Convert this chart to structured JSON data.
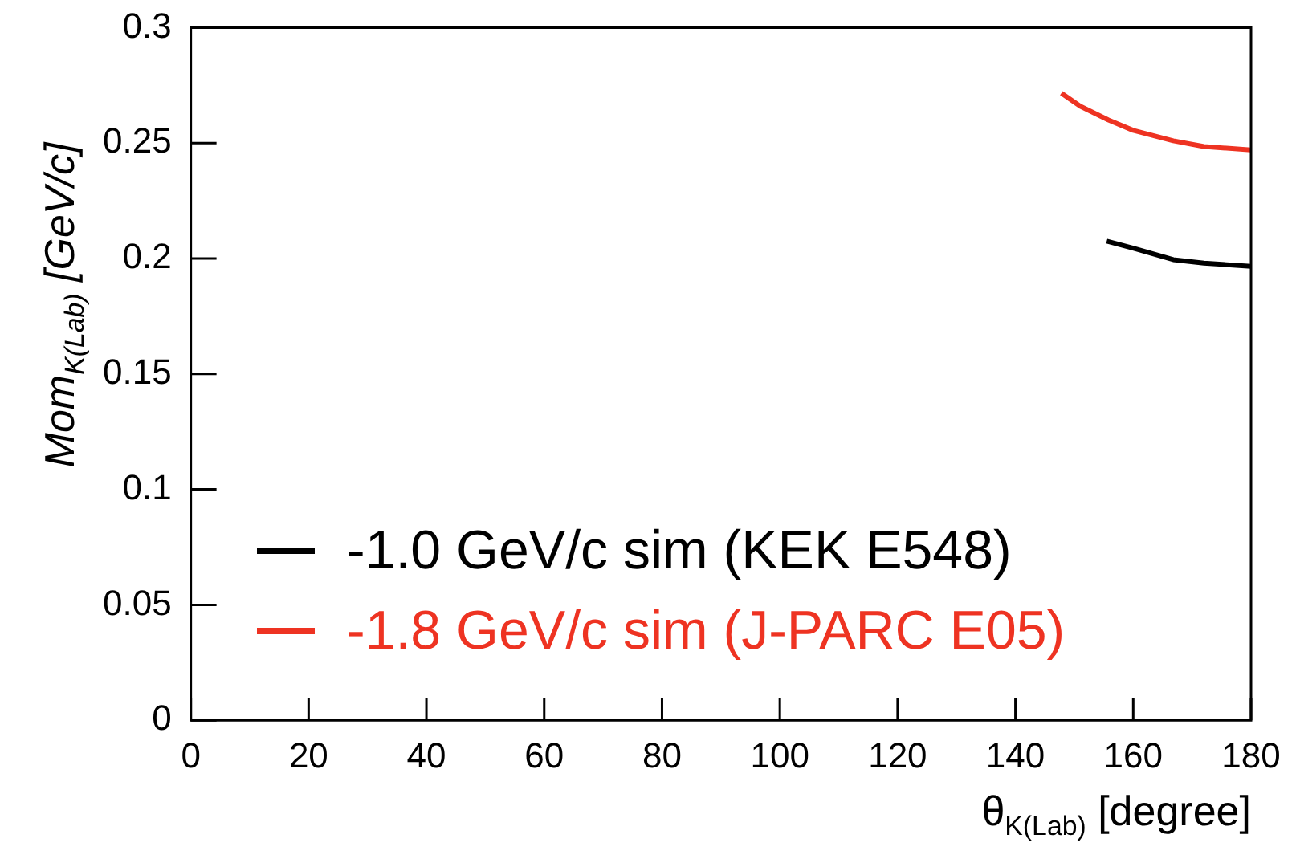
{
  "chart_data": {
    "type": "line",
    "xlabel": "θ$_{K(Lab)}$ [degree]",
    "ylabel": "Mom$_{K(Lab)}$ [GeV/c]",
    "xlim": [
      0,
      180
    ],
    "xticks": [
      0,
      20,
      40,
      60,
      80,
      100,
      120,
      140,
      160,
      180
    ],
    "ylim": [
      0,
      0.3
    ],
    "yticks": [
      0,
      0.05,
      0.1,
      0.15,
      0.2,
      0.25,
      0.3
    ],
    "grid": false,
    "legend": "bottom left",
    "marker": "none",
    "line_style": "solid",
    "series": [
      {
        "name": "-1.0 GeV/c sim (KEK E548)",
        "color": "#000000",
        "x": [
          155.5,
          160,
          166.8,
          172,
          180
        ],
        "values": [
          0.2075,
          0.2045,
          0.1995,
          0.198,
          0.1966
        ]
      },
      {
        "name": "-1.8 GeV/c sim (J-PARC E05)",
        "color": "#ee3322",
        "x": [
          147.8,
          151,
          155.8,
          160,
          166.8,
          172,
          180
        ],
        "values": [
          0.2716,
          0.266,
          0.26,
          0.2555,
          0.251,
          0.2485,
          0.247
        ]
      }
    ]
  }
}
